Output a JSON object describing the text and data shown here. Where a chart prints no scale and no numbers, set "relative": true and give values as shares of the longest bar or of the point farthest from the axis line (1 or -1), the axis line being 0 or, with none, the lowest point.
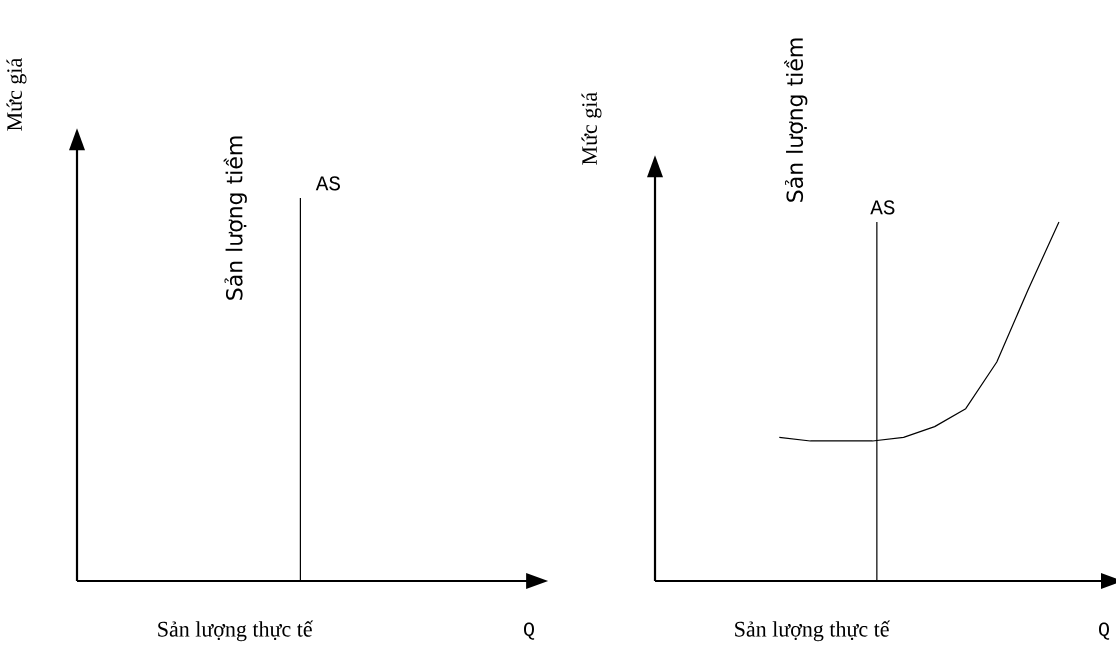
{
  "chart_data": [
    {
      "type": "other",
      "xlabel": "Sản lượng thực tế",
      "ylabel": "Mức giá",
      "annotations": [
        "Sản lượng tiềm",
        "AS",
        "Q"
      ]
    },
    {
      "type": "line",
      "relative": true,
      "xlabel": "Sản lượng thực tế",
      "ylabel": "Mức giá",
      "categories": [
        null,
        null,
        null,
        null,
        null,
        null,
        null,
        null,
        null,
        null,
        null,
        null,
        null
      ],
      "series": [
        {
          "color": "#000000",
          "values": [
            null,
            null,
            null,
            0.4,
            0.39,
            0.39,
            0.39,
            0.4,
            0.43,
            0.48,
            0.61,
            0.81,
            1
          ]
        }
      ],
      "annotations": [
        "Sản lượng tiềm",
        "AS",
        "Q"
      ]
    }
  ]
}
